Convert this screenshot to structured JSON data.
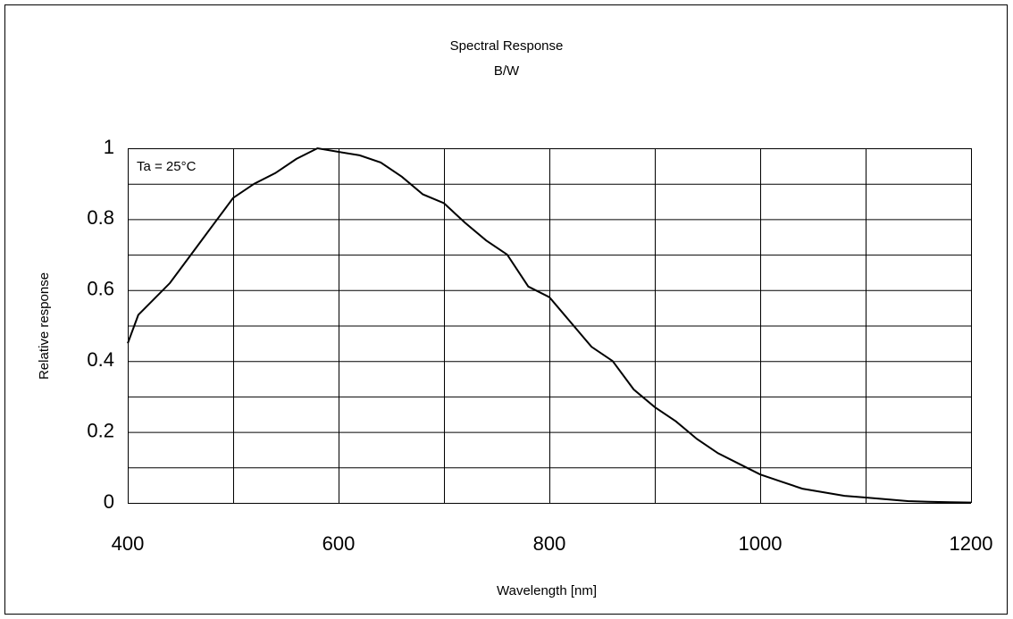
{
  "chart_data": {
    "type": "line",
    "title": "Spectral Response",
    "subtitle": "B/W",
    "x_label": "Wavelength [nm]",
    "y_label": "Relative response",
    "annotation": "Ta = 25°C",
    "x": [
      400,
      410,
      420,
      440,
      460,
      480,
      500,
      520,
      540,
      560,
      580,
      600,
      620,
      640,
      660,
      680,
      700,
      720,
      740,
      760,
      780,
      800,
      820,
      840,
      860,
      880,
      900,
      920,
      940,
      960,
      980,
      1000,
      1020,
      1040,
      1060,
      1080,
      1100,
      1120,
      1140,
      1160,
      1180,
      1200
    ],
    "series": [
      {
        "name": "B/W",
        "color": "#000000",
        "values": [
          0.45,
          0.53,
          0.56,
          0.62,
          0.7,
          0.78,
          0.86,
          0.9,
          0.93,
          0.97,
          1.0,
          0.99,
          0.98,
          0.96,
          0.92,
          0.87,
          0.845,
          0.79,
          0.74,
          0.7,
          0.61,
          0.58,
          0.51,
          0.44,
          0.4,
          0.32,
          0.27,
          0.23,
          0.18,
          0.14,
          0.11,
          0.08,
          0.06,
          0.04,
          0.03,
          0.02,
          0.015,
          0.01,
          0.005,
          0.003,
          0.002,
          0.001
        ]
      }
    ],
    "xlim": [
      400,
      1200
    ],
    "xticks": [
      400,
      600,
      800,
      1000,
      1200
    ],
    "x_grid": [
      400,
      500,
      600,
      700,
      800,
      900,
      1000,
      1100,
      1200
    ],
    "ylim": [
      0,
      1
    ],
    "yticks": [
      0,
      0.2,
      0.4,
      0.6,
      0.8,
      1
    ],
    "y_grid": [
      0,
      0.1,
      0.2,
      0.3,
      0.4,
      0.5,
      0.6,
      0.7,
      0.8,
      0.9,
      1
    ],
    "grid": true
  }
}
